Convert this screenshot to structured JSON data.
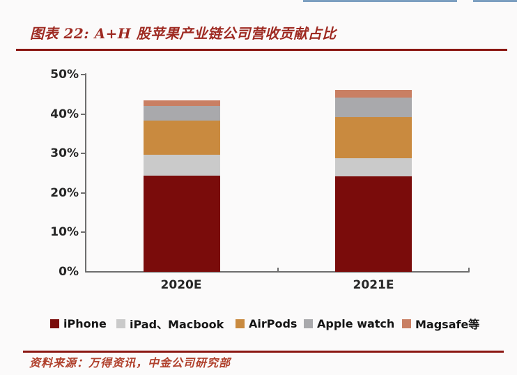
{
  "page": {
    "title": "图表 22: A+H 股苹果产业链公司营收贡献占比",
    "source_note": "资料来源：万得资讯，中金公司研究部"
  },
  "colors": {
    "page_bg": "#FBFAFA",
    "top_line_blue": "#7C9FC0",
    "accent_dark_red": "#8B1712",
    "title_text": "#9E2A22",
    "source_text": "#B0402C",
    "axis_gray": "#6E6E6E",
    "tick_label": "#262626"
  },
  "chart_data": {
    "type": "bar",
    "stacked": true,
    "title": "A+H 股苹果产业链公司营收贡献占比",
    "categories": [
      "2020E",
      "2021E"
    ],
    "series": [
      {
        "name": "iPhone",
        "color": "#7A0C0B",
        "values": [
          24.3,
          24.2
        ]
      },
      {
        "name": "iPad、Macbook",
        "color": "#CACACA",
        "values": [
          5.3,
          4.6
        ]
      },
      {
        "name": "AirPods",
        "color": "#C98A3F",
        "values": [
          8.8,
          10.4
        ]
      },
      {
        "name": "Apple watch",
        "color": "#A9A9AC",
        "values": [
          3.7,
          4.9
        ]
      },
      {
        "name": "Magsafe等",
        "color": "#C97F63",
        "values": [
          1.3,
          2.0
        ]
      }
    ],
    "totals": [
      43.4,
      46.1
    ],
    "xlabel": "",
    "ylabel": "",
    "ylim": [
      0,
      50
    ],
    "y_ticks": [
      "0%",
      "10%",
      "20%",
      "30%",
      "40%",
      "50%"
    ],
    "grid": false,
    "legend_position": "bottom"
  }
}
